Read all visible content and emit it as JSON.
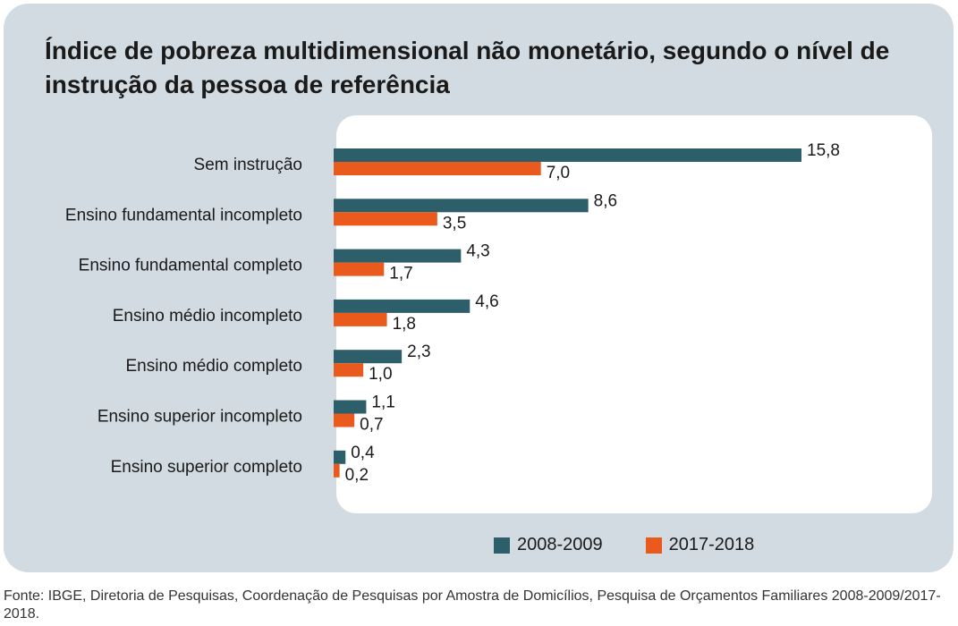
{
  "title": "Índice de pobreza multidimensional não monetário, segundo o nível de instrução da pessoa de referência",
  "source": "Fonte: IBGE, Diretoria de Pesquisas, Coordenação de Pesquisas por Amostra de Domicílios, Pesquisa de Orçamentos Familiares 2008-2009/2017-2018.",
  "colors": {
    "series_2008": "#2d5f6b",
    "series_2017": "#ea5a1d",
    "card_bg": "#d1dbe1",
    "plot_bg": "#ffffff"
  },
  "chart_data": {
    "type": "bar",
    "orientation": "horizontal",
    "title": "Índice de pobreza multidimensional não monetário, segundo o nível de instrução da pessoa de referência",
    "categories": [
      "Sem instrução",
      "Ensino fundamental incompleto",
      "Ensino fundamental completo",
      "Ensino médio incompleto",
      "Ensino médio completo",
      "Ensino superior incompleto",
      "Ensino superior completo"
    ],
    "series": [
      {
        "name": "2008-2009",
        "values": [
          15.8,
          8.6,
          4.3,
          4.6,
          2.3,
          1.1,
          0.4
        ],
        "labels": [
          "15,8",
          "8,6",
          "4,3",
          "4,6",
          "2,3",
          "1,1",
          "0,4"
        ]
      },
      {
        "name": "2017-2018",
        "values": [
          7.0,
          3.5,
          1.7,
          1.8,
          1.0,
          0.7,
          0.2
        ],
        "labels": [
          "7,0",
          "3,5",
          "1,7",
          "1,8",
          "1,0",
          "0,7",
          "0,2"
        ]
      }
    ],
    "xlim": [
      0,
      15.8
    ],
    "grid": false,
    "legend_position": "bottom"
  }
}
